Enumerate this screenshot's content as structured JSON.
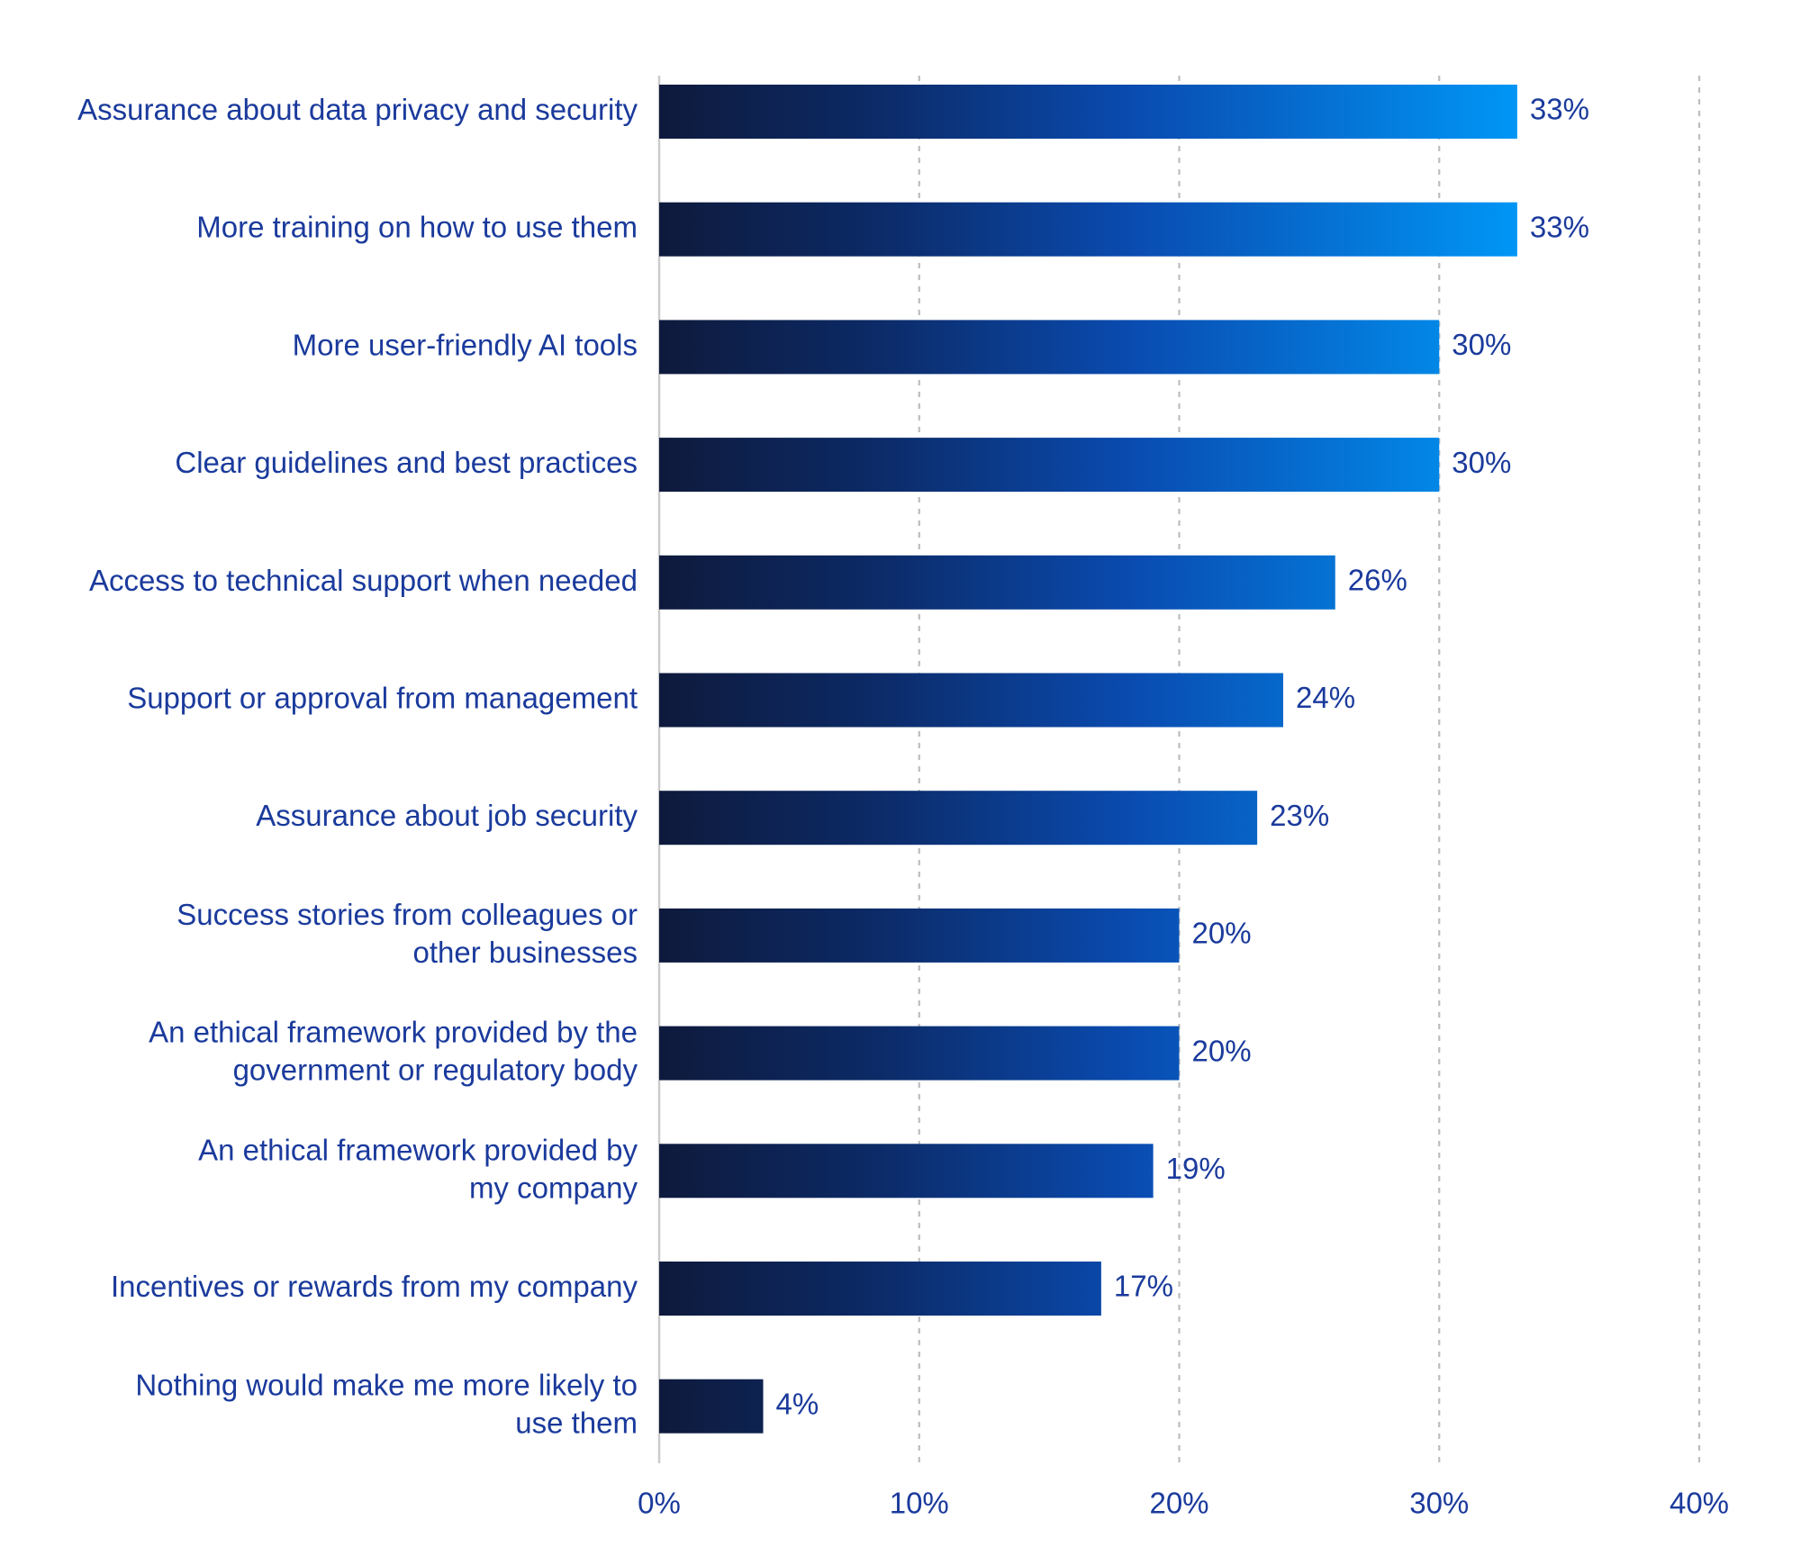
{
  "chart_data": {
    "type": "bar",
    "orientation": "horizontal",
    "title": "",
    "xlabel": "",
    "ylabel": "",
    "xlim": [
      0,
      40
    ],
    "grid": true,
    "x_ticks": [
      0,
      10,
      20,
      30,
      40
    ],
    "x_tick_labels": [
      "0%",
      "10%",
      "20%",
      "30%",
      "40%"
    ],
    "categories": [
      [
        "Assurance about data privacy and security"
      ],
      [
        "More training on how to use them"
      ],
      [
        "More user-friendly AI tools"
      ],
      [
        "Clear guidelines and best practices"
      ],
      [
        "Access to technical support when needed"
      ],
      [
        "Support or approval from management"
      ],
      [
        "Assurance about job security"
      ],
      [
        "Success stories from colleagues or",
        "other businesses"
      ],
      [
        "An ethical framework provided by the",
        "government or regulatory body"
      ],
      [
        "An ethical framework provided by",
        "my company"
      ],
      [
        "Incentives or rewards from my company"
      ],
      [
        "Nothing would make me more likely to",
        "use them"
      ]
    ],
    "values": [
      33,
      33,
      30,
      30,
      26,
      24,
      23,
      20,
      20,
      19,
      17,
      4
    ],
    "value_labels": [
      "33%",
      "33%",
      "30%",
      "30%",
      "26%",
      "24%",
      "23%",
      "20%",
      "20%",
      "19%",
      "17%",
      "4%"
    ]
  },
  "colors": {
    "gradient_start": "#0e1a3c",
    "gradient_mid": "#0a4bb0",
    "gradient_end": "#0096f5",
    "text": "#1a3a9c",
    "axis": "#cccccc",
    "grid": "#bdbdbd"
  }
}
